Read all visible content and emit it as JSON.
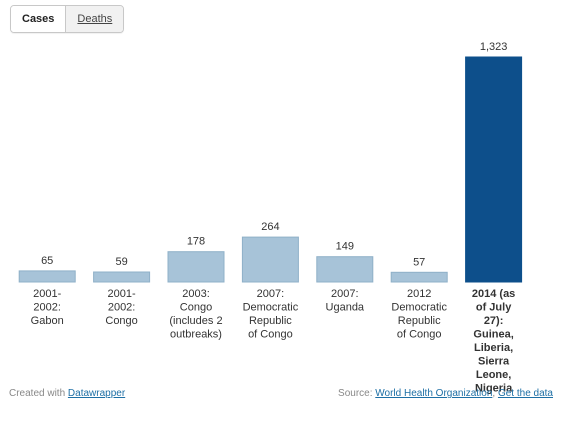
{
  "toggle": {
    "cases_label": "Cases",
    "deaths_label": "Deaths"
  },
  "colors": {
    "bar_default": "#a7c3d8",
    "bar_highlight": "#0d4f8b",
    "bar_stroke": "#8fb0c8",
    "link": "#1d6fa5"
  },
  "chart_data": {
    "type": "bar",
    "title": "",
    "xlabel": "",
    "ylabel": "",
    "ylim": [
      0,
      1323
    ],
    "grid": false,
    "legend": "none",
    "categories": [
      "2001-2002: Gabon",
      "2001-2002: Congo",
      "2003: Congo (includes 2 outbreaks)",
      "2007: Democratic Republic of Congo",
      "2007: Uganda",
      "2012 Democratic Republic of Congo",
      "2014 (as of July 27): Guinea, Liberia, Sierra Leone, Nigeria"
    ],
    "category_lines": [
      [
        "2001-",
        "2002:",
        "Gabon"
      ],
      [
        "2001-",
        "2002:",
        "Congo"
      ],
      [
        "2003:",
        "Congo",
        "(includes 2",
        "outbreaks)"
      ],
      [
        "2007:",
        "Democratic",
        "Republic",
        "of Congo"
      ],
      [
        "2007:",
        "Uganda"
      ],
      [
        "2012",
        "Democratic",
        "Republic",
        "of Congo"
      ],
      [
        "2014 (as",
        "of July",
        "27):",
        "Guinea,",
        "Liberia,",
        "Sierra",
        "Leone,",
        "Nigeria"
      ]
    ],
    "highlight_index": 6,
    "values": [
      65,
      59,
      178,
      264,
      149,
      57,
      1323
    ],
    "value_labels": [
      "65",
      "59",
      "178",
      "264",
      "149",
      "57",
      "1,323"
    ]
  },
  "footer": {
    "created_prefix": "Created with",
    "created_link": "Datawrapper",
    "source_prefix": "Source:",
    "source_link": "World Health Organization",
    "get_data_link": "Get the data"
  }
}
